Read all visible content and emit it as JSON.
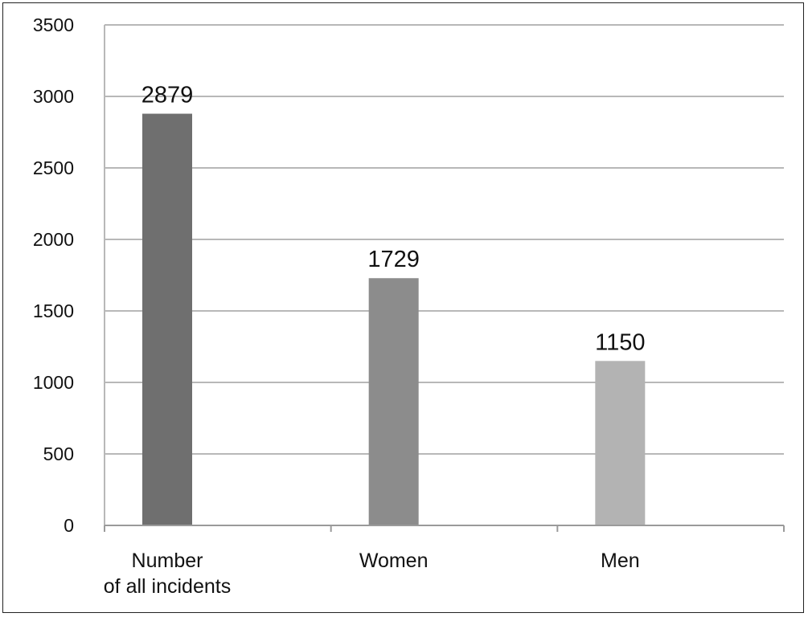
{
  "chart_data": {
    "type": "bar",
    "title": "",
    "xlabel": "",
    "ylabel": "",
    "categories": [
      [
        "Number",
        "of all incidents"
      ],
      [
        "Women"
      ],
      [
        "Men"
      ]
    ],
    "values": [
      2879,
      1729,
      1150
    ],
    "data_labels": [
      "2879",
      "1729",
      "1150"
    ],
    "bar_colors": [
      "#6f6f6f",
      "#8c8c8c",
      "#b3b3b3"
    ],
    "ylim": [
      0,
      3500
    ],
    "yticks": [
      0,
      500,
      1000,
      1500,
      2000,
      2500,
      3000,
      3500
    ],
    "grid": true,
    "legend": "none"
  }
}
